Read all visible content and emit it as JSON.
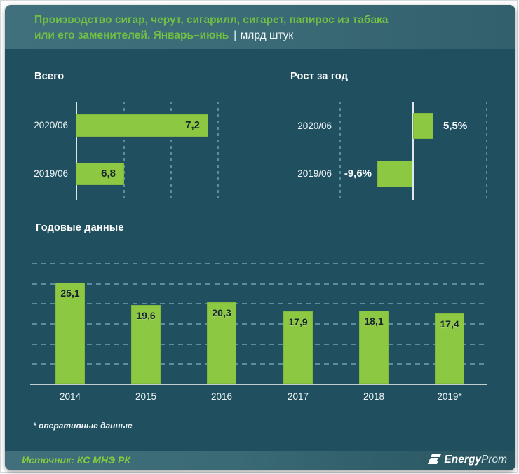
{
  "header": {
    "title_line1": "Производство сигар, черут, сигарилл, сигарет, папирос из табака",
    "title_line2": "или его заменителей. Январь–июнь",
    "separator": "|",
    "unit": "млрд штук"
  },
  "footnote": "* оперативные данные",
  "source": "Источник: КС МНЭ РК",
  "logo": {
    "brand_bold": "Energy",
    "brand_light": "Prom"
  },
  "colors": {
    "body_teal": "#20505f",
    "band_teal": "#3a6a76",
    "bar_green": "#8dc843",
    "title_green": "#71c044",
    "source_green": "#86cc3e"
  },
  "chart_data": [
    {
      "type": "bar",
      "orientation": "horizontal",
      "title": "Всего",
      "unit": "млрд штук",
      "categories": [
        "2020/06",
        "2019/06"
      ],
      "values": [
        7.2,
        6.8
      ],
      "value_labels": [
        "7,2",
        "6,8"
      ],
      "value_label_position": "inside-end",
      "grid": "dashed-vertical",
      "axis_note": "bars not zero-based, axis starts near 6.6"
    },
    {
      "type": "bar",
      "orientation": "horizontal",
      "title": "Рост за год",
      "unit": "%",
      "categories": [
        "2020/06",
        "2019/06"
      ],
      "values": [
        5.5,
        -9.6
      ],
      "value_labels": [
        "5,5%",
        "-9,6%"
      ],
      "value_label_position": "outside-end",
      "baseline": 0,
      "grid": "dashed-vertical"
    },
    {
      "type": "bar",
      "orientation": "vertical",
      "title": "Годовые данные",
      "categories": [
        "2014",
        "2015",
        "2016",
        "2017",
        "2018",
        "2019*"
      ],
      "values": [
        25.1,
        19.6,
        20.3,
        17.9,
        18.1,
        17.4
      ],
      "value_labels": [
        "25,1",
        "19,6",
        "20,3",
        "17,9",
        "18,1",
        "17,4"
      ],
      "value_label_position": "inside-top",
      "ylim": [
        0,
        30
      ],
      "gridlines": [
        5,
        10,
        15,
        20,
        25,
        30
      ],
      "grid": "dashed-horizontal"
    }
  ]
}
